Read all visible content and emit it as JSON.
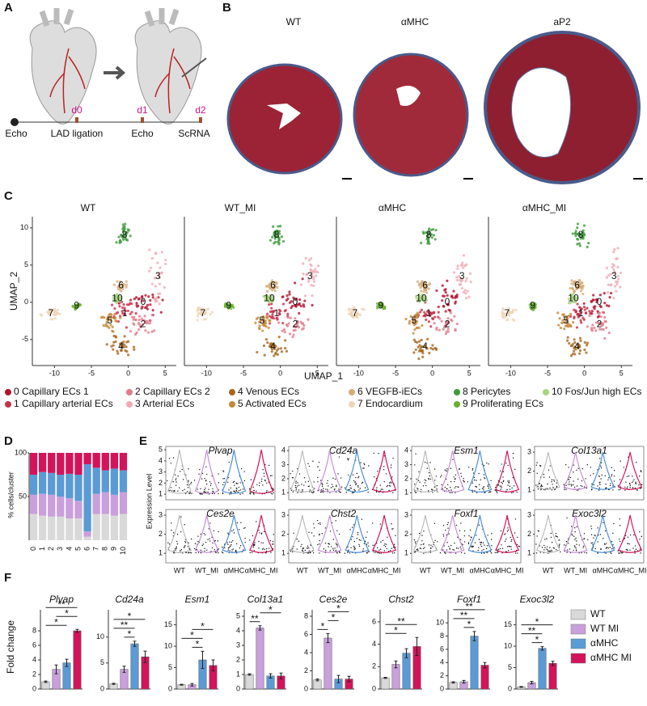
{
  "panel_a": {
    "label": "A",
    "days": [
      "d0",
      "d1",
      "d2"
    ],
    "steps": [
      "Echo",
      "LAD ligation",
      "Echo",
      "ScRNA"
    ]
  },
  "panel_b": {
    "label": "B",
    "titles": [
      "WT",
      "αMHC",
      "aP2"
    ]
  },
  "panel_c": {
    "label": "C",
    "type": "scatter",
    "titles": [
      "WT",
      "WT_MI",
      "αMHC",
      "αMHC_MI"
    ],
    "x_label": "UMAP_1",
    "y_label": "UMAP_2",
    "xlim": [
      -13,
      6.5
    ],
    "ylim": [
      -8.5,
      11.5
    ],
    "xticks": [
      -10,
      -5,
      0,
      5
    ],
    "yticks": [
      -5,
      0,
      5,
      10
    ],
    "clusters": [
      {
        "label": "0",
        "legend": "0 Capillary ECs 1",
        "color": "#b5112f",
        "x": 2,
        "y": 0
      },
      {
        "label": "1",
        "legend": "1 Capillary arterial ECs",
        "color": "#c8304a",
        "x": -0.5,
        "y": -1.5
      },
      {
        "label": "2",
        "legend": "2 Capillary ECs 2",
        "color": "#e07b8a",
        "x": 2,
        "y": -3
      },
      {
        "label": "3",
        "legend": "3 Arterial ECs",
        "color": "#f0aab5",
        "x": 4,
        "y": 3.5
      },
      {
        "label": "4",
        "legend": "4 Venous ECs",
        "color": "#a8661d",
        "x": -1,
        "y": -6
      },
      {
        "label": "5",
        "legend": "5 Activated ECs",
        "color": "#c48a3a",
        "x": -2.5,
        "y": -2.5
      },
      {
        "label": "6",
        "legend": "6 VEGFB-iECs",
        "color": "#d4ac78",
        "x": -1,
        "y": 2.2
      },
      {
        "label": "7",
        "legend": "7 Endocardium",
        "color": "#eed5b7",
        "x": -10.5,
        "y": -1.5
      },
      {
        "label": "8",
        "legend": "8 Pericytes",
        "color": "#3d9a3d",
        "x": -0.5,
        "y": 9
      },
      {
        "label": "9",
        "legend": "9 Proliferating ECs",
        "color": "#66b032",
        "x": -7,
        "y": -0.5
      },
      {
        "label": "10",
        "legend": "10 Fos/Jun high ECs",
        "color": "#a8d480",
        "x": -1.5,
        "y": 0.5
      }
    ]
  },
  "panel_d": {
    "label": "D",
    "type": "stacked_bar",
    "y_label": "% cells/cluster",
    "ylim": [
      0,
      100
    ],
    "yticks": [
      50,
      100
    ],
    "categories": [
      "0",
      "1",
      "2",
      "3",
      "4",
      "5",
      "6",
      "7",
      "8",
      "9",
      "10"
    ],
    "series": [
      {
        "color": "#d9d9d9",
        "values": [
          30,
          28,
          27,
          27,
          25,
          25,
          4,
          30,
          30,
          28,
          30
        ]
      },
      {
        "color": "#c9a0dc",
        "values": [
          22,
          25,
          25,
          23,
          23,
          20,
          6,
          23,
          25,
          24,
          25
        ]
      },
      {
        "color": "#5b9bd5",
        "values": [
          23,
          25,
          25,
          25,
          28,
          30,
          77,
          30,
          25,
          30,
          25
        ]
      },
      {
        "color": "#d4145a",
        "values": [
          25,
          22,
          23,
          25,
          24,
          25,
          13,
          17,
          20,
          18,
          20
        ]
      }
    ]
  },
  "panel_e": {
    "label": "E",
    "y_label": "Expression Level",
    "groups": [
      "WT",
      "WT_MI",
      "αMHC",
      "αMHC_MI"
    ],
    "colors": [
      "#bbbbbb",
      "#c58fd6",
      "#4a90d9",
      "#d4145a"
    ],
    "genes": [
      {
        "name": "Plvap",
        "ylim": [
          0.5,
          5.3
        ],
        "yticks": [
          1,
          2,
          3,
          4,
          5
        ]
      },
      {
        "name": "Cd24a",
        "ylim": [
          0.5,
          4.3
        ],
        "yticks": [
          1,
          2,
          3,
          4
        ]
      },
      {
        "name": "Esm1",
        "ylim": [
          0.5,
          4.3
        ],
        "yticks": [
          1,
          2,
          3,
          4
        ]
      },
      {
        "name": "Col13a1",
        "ylim": [
          0.5,
          3.3
        ],
        "yticks": [
          1,
          2,
          3
        ]
      },
      {
        "name": "Ces2e",
        "ylim": [
          0.5,
          3.3
        ],
        "yticks": [
          1,
          2,
          3
        ]
      },
      {
        "name": "Chst2",
        "ylim": [
          0.5,
          3.3
        ],
        "yticks": [
          1,
          2,
          3
        ]
      },
      {
        "name": "Foxf1",
        "ylim": [
          0.5,
          3.3
        ],
        "yticks": [
          1,
          2,
          3
        ]
      },
      {
        "name": "Exoc3l2",
        "ylim": [
          0.5,
          3.3
        ],
        "yticks": [
          1,
          2,
          3
        ]
      }
    ]
  },
  "panel_f": {
    "label": "F",
    "type": "bar",
    "y_label": "Fold change",
    "legend": [
      {
        "name": "WT",
        "color": "#d9d9d9"
      },
      {
        "name": "WT MI",
        "color": "#c9a0dc"
      },
      {
        "name": "αMHC",
        "color": "#5b9bd5"
      },
      {
        "name": "αMHC MI",
        "color": "#d4145a"
      }
    ],
    "charts": [
      {
        "gene": "Plvap",
        "ylim": [
          0,
          10
        ],
        "yticks": [
          0,
          2,
          4,
          6,
          8
        ],
        "values": [
          1,
          2.7,
          3.6,
          8
        ],
        "errors": [
          0.1,
          0.6,
          0.5,
          0.2
        ],
        "significance": [
          {
            "label": "*",
            "pair": [
              0,
              2
            ]
          },
          {
            "label": "*",
            "pair": [
              1,
              3
            ]
          },
          {
            "label": "**",
            "pair": [
              0,
              3
            ]
          }
        ]
      },
      {
        "gene": "Cd24a",
        "ylim": [
          0,
          14
        ],
        "yticks": [
          0,
          5,
          10
        ],
        "values": [
          1,
          3.8,
          8.7,
          6.2
        ],
        "errors": [
          0.1,
          0.6,
          0.5,
          1.1
        ],
        "significance": [
          {
            "label": "*",
            "pair": [
              1,
              2
            ]
          },
          {
            "label": "**",
            "pair": [
              0,
              2
            ]
          },
          {
            "label": "*",
            "pair": [
              0,
              3
            ]
          }
        ]
      },
      {
        "gene": "Esm1",
        "ylim": [
          0,
          17
        ],
        "yticks": [
          0,
          5,
          10,
          15
        ],
        "values": [
          1,
          1,
          6.8,
          5.5
        ],
        "errors": [
          0.1,
          0.3,
          2,
          1.3
        ],
        "significance": [
          {
            "label": "*",
            "pair": [
              1,
              2
            ]
          },
          {
            "label": "*",
            "pair": [
              0,
              2
            ]
          },
          {
            "label": "*",
            "pair": [
              1,
              3
            ]
          }
        ]
      },
      {
        "gene": "Col13a1",
        "ylim": [
          0,
          5
        ],
        "yticks": [
          0,
          1,
          2,
          3,
          4,
          5
        ],
        "values": [
          1,
          4.2,
          0.9,
          0.9
        ],
        "errors": [
          0.05,
          0.15,
          0.15,
          0.2
        ],
        "significance": [
          {
            "label": "**",
            "pair": [
              0,
              1
            ]
          },
          {
            "label": "*",
            "pair": [
              1,
              3
            ]
          }
        ]
      },
      {
        "gene": "Ces2e",
        "ylim": [
          0,
          8
        ],
        "yticks": [
          0,
          2,
          4,
          6,
          8
        ],
        "values": [
          1,
          5.6,
          1.1,
          1.1
        ],
        "errors": [
          0.1,
          0.5,
          0.4,
          0.3
        ],
        "significance": [
          {
            "label": "*",
            "pair": [
              0,
              1
            ]
          },
          {
            "label": "*",
            "pair": [
              1,
              2
            ]
          },
          {
            "label": "*",
            "pair": [
              1,
              3
            ]
          }
        ]
      },
      {
        "gene": "Chst2",
        "ylim": [
          0,
          6.5
        ],
        "yticks": [
          0,
          2,
          4,
          6
        ],
        "values": [
          1,
          2.2,
          3.2,
          3.8
        ],
        "errors": [
          0.05,
          0.3,
          0.4,
          0.8
        ],
        "significance": [
          {
            "label": "*",
            "pair": [
              0,
              2
            ]
          },
          {
            "label": "**",
            "pair": [
              0,
              3
            ]
          }
        ]
      },
      {
        "gene": "Foxf1",
        "ylim": [
          0,
          11
        ],
        "yticks": [
          0,
          2,
          4,
          6,
          8,
          10
        ],
        "values": [
          1,
          1.1,
          8,
          3.6
        ],
        "errors": [
          0.1,
          0.2,
          0.7,
          0.4
        ],
        "significance": [
          {
            "label": "*",
            "pair": [
              1,
              2
            ]
          },
          {
            "label": "**",
            "pair": [
              0,
              2
            ]
          },
          {
            "label": "**",
            "pair": [
              0,
              3
            ]
          }
        ]
      },
      {
        "gene": "Exoc3l2",
        "ylim": [
          0,
          17
        ],
        "yticks": [
          0,
          5,
          10,
          15
        ],
        "values": [
          0.5,
          1.5,
          9.5,
          6
        ],
        "errors": [
          0.1,
          0.3,
          0.4,
          0.5
        ],
        "significance": [
          {
            "label": "*",
            "pair": [
              1,
              2
            ]
          },
          {
            "label": "**",
            "pair": [
              0,
              2
            ]
          },
          {
            "label": "*",
            "pair": [
              0,
              3
            ]
          }
        ]
      }
    ]
  }
}
